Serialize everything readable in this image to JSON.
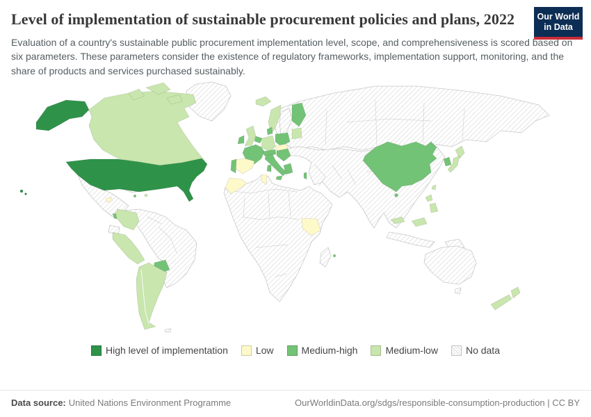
{
  "header": {
    "title": "Level of implementation of sustainable procurement policies and plans, 2022",
    "logo": {
      "line1": "Our World",
      "line2": "in Data"
    }
  },
  "subtitle": "Evaluation of a country's sustainable public procurement implementation level, scope, and comprehensiveness is scored based on six parameters. These parameters consider the existence of regulatory frameworks, implementation support, monitoring, and the share of products and services purchased sustainably.",
  "legend": {
    "items": [
      {
        "label": "High level of implementation",
        "color": "#2e9349"
      },
      {
        "label": "Low",
        "color": "#fdf9c9"
      },
      {
        "label": "Medium-high",
        "color": "#73c376"
      },
      {
        "label": "Medium-low",
        "color": "#c8e6ad"
      },
      {
        "label": "No data",
        "pattern": "hatch"
      }
    ]
  },
  "footer": {
    "source_label": "Data source:",
    "source_value": "United Nations Environment Programme",
    "link": "OurWorldinData.org/sdgs/responsible-consumption-production | CC BY"
  },
  "colors": {
    "high": "#2e9349",
    "medium_high": "#73c376",
    "medium_low": "#c8e6ad",
    "low": "#fdf9c9",
    "logo_navy": "#0d2e54",
    "logo_red": "#cb2d3a",
    "map_border": "#c8c8c8",
    "hatch_line": "#d7d7d7"
  },
  "chart_data": {
    "type": "choropleth",
    "title": "Level of implementation of sustainable procurement policies and plans",
    "year": "2022",
    "categories": [
      "High level of implementation",
      "Low",
      "Medium-high",
      "Medium-low",
      "No data"
    ],
    "assignments": {
      "alaska": "high",
      "united-states": "high",
      "hawaii": "high",
      "canada": "medium_low",
      "arctic-islands-1": "medium_low",
      "arctic-islands-2": "medium_low",
      "arctic-islands-3": "medium_low",
      "greenland": "no_data",
      "iceland": "medium_low",
      "mexico-central-america": "no_data",
      "honduras": "low",
      "costa-rica": "medium_high",
      "panama": "low",
      "cuba": "no_data",
      "jamaica": "medium_high",
      "dominican-republic": "medium_low",
      "colombia": "medium_low",
      "ecuador": "no_data",
      "peru": "medium_low",
      "brazil-venezuela": "no_data",
      "paraguay": "medium_high",
      "argentina-chile": "medium_low",
      "falklands": "no_data",
      "norway": "medium_low",
      "sweden": "no_data",
      "finland": "medium_high",
      "baltics": "medium_low",
      "denmark": "medium_high",
      "united-kingdom": "medium_low",
      "ireland": "medium_high",
      "benelux": "medium_high",
      "germany": "medium_low",
      "poland": "medium_high",
      "czech-slovakia": "low",
      "france": "medium_high",
      "switzerland-austria": "medium_high",
      "hungary-croatia": "medium_high",
      "spain": "low",
      "portugal": "medium_high",
      "italy": "medium_high",
      "sicily": "medium_high",
      "sardinia": "medium_high",
      "greece": "medium_high",
      "morocco": "low",
      "tunisia": "low",
      "israel": "medium_high",
      "uganda-kenya": "low",
      "mauritius": "medium_high",
      "africa": "no_data",
      "madagascar": "no_data",
      "russia-north-asia": "no_data",
      "central-south-asia": "no_data",
      "china": "medium_high",
      "hainan": "medium_high",
      "south-korea": "medium_high",
      "japan-north": "medium_low",
      "japan-south": "medium_low",
      "taiwan": "medium_low",
      "philippines-north": "medium_low",
      "philippines-south": "medium_low",
      "malaysia-peninsula": "medium_low",
      "malaysia-borneo": "medium_low",
      "indonesia": "no_data",
      "papua-new-guinea": "no_data",
      "australia": "no_data",
      "tasmania": "no_data",
      "new-zealand-north": "medium_low",
      "new-zealand-south": "medium_low"
    }
  }
}
